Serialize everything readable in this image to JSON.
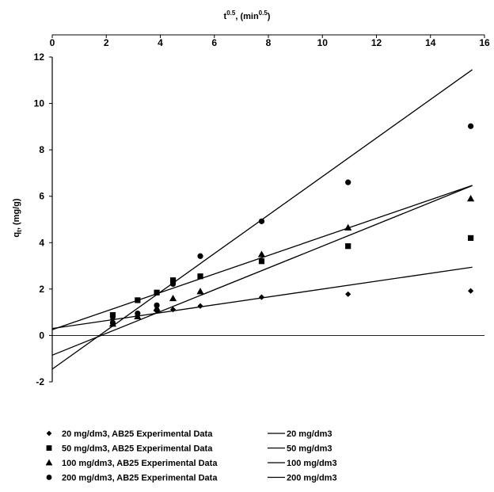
{
  "chart_data": {
    "type": "scatter",
    "title": "",
    "xlabel": "t",
    "xlabel_sup": "0.5",
    "xlabel_unit_prefix": ", (min",
    "xlabel_unit_sup": "0.5",
    "xlabel_unit_suffix": ")",
    "ylabel": "q",
    "ylabel_sub": "t",
    "ylabel_unit": ", (mg/g)",
    "xlim": [
      0,
      16
    ],
    "ylim": [
      -2,
      12
    ],
    "x_ticks": [
      "0",
      "2",
      "4",
      "6",
      "8",
      "10",
      "12",
      "14",
      "16"
    ],
    "y_ticks": [
      "-2",
      "0",
      "2",
      "4",
      "6",
      "8",
      "10",
      "12"
    ],
    "x_axis_position": "top",
    "grid": false,
    "legend_position": "bottom",
    "series": [
      {
        "name": "20 mg/dm3, AB25 Experimental Data",
        "line_name": "20 mg/dm3",
        "marker": "diamond",
        "x": [
          2.24,
          3.16,
          3.87,
          4.47,
          5.48,
          7.75,
          10.95,
          15.49
        ],
        "y": [
          0.72,
          0.85,
          1.05,
          1.12,
          1.27,
          1.65,
          1.78,
          1.92
        ],
        "fit": {
          "intercept": 0.3,
          "slope": 0.17
        }
      },
      {
        "name": "50 mg/dm3, AB25 Experimental Data",
        "line_name": "50 mg/dm3",
        "marker": "square",
        "x": [
          2.24,
          3.16,
          3.87,
          4.47,
          5.48,
          7.75,
          10.95,
          15.49
        ],
        "y": [
          0.88,
          1.52,
          1.85,
          2.38,
          2.55,
          3.2,
          3.85,
          4.2
        ],
        "fit": {
          "intercept": 0.25,
          "slope": 0.4
        }
      },
      {
        "name": "100 mg/dm3, AB25 Experimental Data",
        "line_name": "100 mg/dm3",
        "marker": "triangle",
        "x": [
          2.24,
          3.16,
          3.87,
          4.47,
          5.48,
          7.75,
          10.95,
          15.49
        ],
        "y": [
          0.5,
          0.82,
          1.18,
          1.6,
          1.9,
          3.5,
          4.65,
          5.9
        ],
        "fit": {
          "intercept": -0.85,
          "slope": 0.47
        }
      },
      {
        "name": "200 mg/dm3, AB25 Experimental Data",
        "line_name": "200 mg/dm3",
        "marker": "circle",
        "x": [
          2.24,
          3.16,
          3.87,
          4.47,
          5.48,
          7.75,
          10.95,
          15.49
        ],
        "y": [
          0.55,
          0.95,
          1.3,
          2.22,
          3.42,
          4.92,
          6.6,
          9.02
        ],
        "fit": {
          "intercept": -1.45,
          "slope": 0.83
        }
      }
    ]
  }
}
